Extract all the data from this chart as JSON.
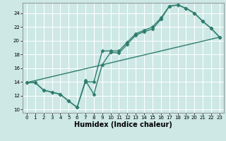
{
  "bg_color": "#cde8e5",
  "grid_color": "#ffffff",
  "line_color": "#2e7d6e",
  "marker": "D",
  "markersize": 2.5,
  "linewidth": 1.0,
  "xlabel": "Humidex (Indice chaleur)",
  "xlabel_fontsize": 7,
  "tick_fontsize": 5,
  "xlim": [
    -0.5,
    23.5
  ],
  "ylim": [
    9.5,
    25.5
  ],
  "yticks": [
    10,
    12,
    14,
    16,
    18,
    20,
    22,
    24
  ],
  "xticks": [
    0,
    1,
    2,
    3,
    4,
    5,
    6,
    7,
    8,
    9,
    10,
    11,
    12,
    13,
    14,
    15,
    16,
    17,
    18,
    19,
    20,
    21,
    22,
    23
  ],
  "line1_x": [
    0,
    1,
    2,
    3,
    4,
    5,
    6,
    7,
    8,
    9,
    10,
    11,
    12,
    13,
    14,
    15,
    16,
    17,
    18,
    19,
    20,
    21,
    22,
    23
  ],
  "line1_y": [
    13.9,
    13.9,
    12.8,
    12.5,
    12.2,
    11.2,
    10.3,
    14.2,
    12.2,
    16.5,
    18.3,
    18.2,
    19.5,
    20.8,
    21.3,
    21.7,
    23.1,
    25.0,
    25.2,
    24.7,
    24.0,
    22.8,
    21.8,
    20.5
  ],
  "line2_x": [
    0,
    1,
    2,
    3,
    4,
    5,
    6,
    7,
    8,
    9,
    10,
    11,
    12,
    13,
    14,
    15,
    16,
    17,
    18,
    19,
    20,
    21,
    22,
    23
  ],
  "line2_y": [
    13.9,
    13.9,
    12.8,
    12.5,
    12.2,
    11.2,
    10.3,
    14.0,
    14.0,
    18.5,
    18.5,
    18.5,
    19.8,
    21.0,
    21.5,
    22.0,
    23.3,
    25.0,
    25.2,
    24.7,
    24.0,
    22.8,
    21.8,
    20.5
  ],
  "line3_x": [
    0,
    23
  ],
  "line3_y": [
    13.9,
    20.5
  ]
}
